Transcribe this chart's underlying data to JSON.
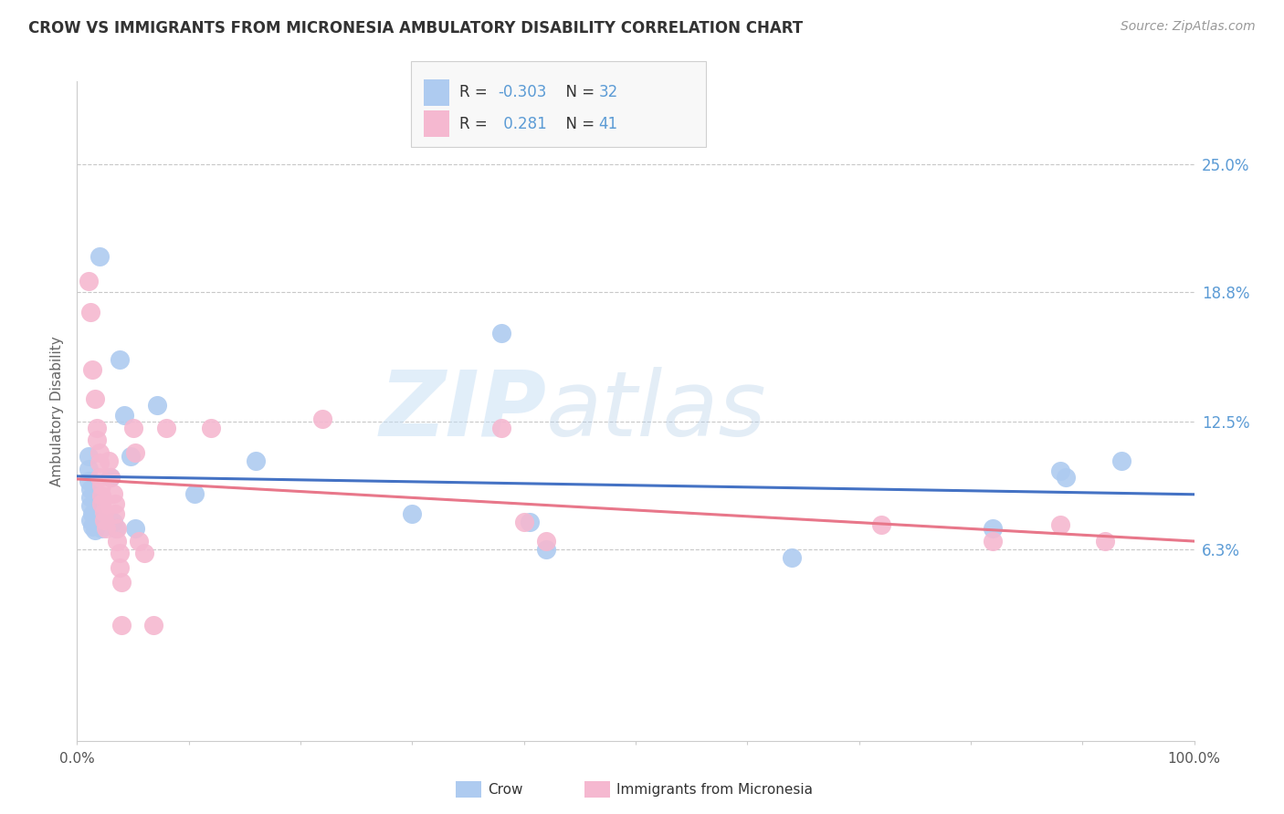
{
  "title": "CROW VS IMMIGRANTS FROM MICRONESIA AMBULATORY DISABILITY CORRELATION CHART",
  "source": "Source: ZipAtlas.com",
  "ylabel": "Ambulatory Disability",
  "watermark_zip": "ZIP",
  "watermark_atlas": "atlas",
  "xlim": [
    0.0,
    1.0
  ],
  "ylim": [
    -0.03,
    0.29
  ],
  "yticks": [
    0.063,
    0.125,
    0.188,
    0.25
  ],
  "ytick_labels": [
    "6.3%",
    "12.5%",
    "18.8%",
    "25.0%"
  ],
  "crow_R": -0.303,
  "crow_N": 32,
  "micro_R": 0.281,
  "micro_N": 41,
  "crow_color": "#aecbf0",
  "micro_color": "#f5b8d0",
  "trendline_crow_color": "#4472c4",
  "trendline_micro_color": "#e8778a",
  "ref_line_color": "#e0b0c0",
  "background_color": "#ffffff",
  "grid_color": "#c8c8c8",
  "axis_color": "#cccccc",
  "title_color": "#333333",
  "source_color": "#999999",
  "tick_label_color": "#5b9bd5",
  "xtick_color": "#555555",
  "ylabel_color": "#666666",
  "legend_R_label_color": "#333333",
  "legend_val_color": "#5b9bd5",
  "crow_points": [
    [
      0.02,
      0.205
    ],
    [
      0.038,
      0.155
    ],
    [
      0.042,
      0.128
    ],
    [
      0.048,
      0.108
    ],
    [
      0.01,
      0.108
    ],
    [
      0.01,
      0.102
    ],
    [
      0.01,
      0.096
    ],
    [
      0.012,
      0.092
    ],
    [
      0.012,
      0.088
    ],
    [
      0.012,
      0.084
    ],
    [
      0.014,
      0.08
    ],
    [
      0.012,
      0.077
    ],
    [
      0.014,
      0.074
    ],
    [
      0.016,
      0.072
    ],
    [
      0.02,
      0.076
    ],
    [
      0.022,
      0.073
    ],
    [
      0.03,
      0.098
    ],
    [
      0.032,
      0.076
    ],
    [
      0.035,
      0.073
    ],
    [
      0.052,
      0.073
    ],
    [
      0.072,
      0.133
    ],
    [
      0.105,
      0.09
    ],
    [
      0.16,
      0.106
    ],
    [
      0.3,
      0.08
    ],
    [
      0.38,
      0.168
    ],
    [
      0.405,
      0.076
    ],
    [
      0.42,
      0.063
    ],
    [
      0.64,
      0.059
    ],
    [
      0.82,
      0.073
    ],
    [
      0.88,
      0.101
    ],
    [
      0.885,
      0.098
    ],
    [
      0.935,
      0.106
    ]
  ],
  "micro_points": [
    [
      0.01,
      0.193
    ],
    [
      0.012,
      0.178
    ],
    [
      0.014,
      0.15
    ],
    [
      0.016,
      0.136
    ],
    [
      0.018,
      0.122
    ],
    [
      0.018,
      0.116
    ],
    [
      0.02,
      0.11
    ],
    [
      0.02,
      0.105
    ],
    [
      0.02,
      0.098
    ],
    [
      0.022,
      0.094
    ],
    [
      0.022,
      0.089
    ],
    [
      0.022,
      0.085
    ],
    [
      0.024,
      0.081
    ],
    [
      0.024,
      0.077
    ],
    [
      0.026,
      0.073
    ],
    [
      0.028,
      0.106
    ],
    [
      0.03,
      0.098
    ],
    [
      0.032,
      0.09
    ],
    [
      0.034,
      0.085
    ],
    [
      0.034,
      0.08
    ],
    [
      0.036,
      0.073
    ],
    [
      0.036,
      0.067
    ],
    [
      0.038,
      0.061
    ],
    [
      0.038,
      0.054
    ],
    [
      0.04,
      0.047
    ],
    [
      0.04,
      0.026
    ],
    [
      0.05,
      0.122
    ],
    [
      0.052,
      0.11
    ],
    [
      0.055,
      0.067
    ],
    [
      0.06,
      0.061
    ],
    [
      0.068,
      0.026
    ],
    [
      0.08,
      0.122
    ],
    [
      0.12,
      0.122
    ],
    [
      0.22,
      0.126
    ],
    [
      0.38,
      0.122
    ],
    [
      0.4,
      0.076
    ],
    [
      0.42,
      0.067
    ],
    [
      0.72,
      0.075
    ],
    [
      0.82,
      0.067
    ],
    [
      0.88,
      0.075
    ],
    [
      0.92,
      0.067
    ]
  ]
}
